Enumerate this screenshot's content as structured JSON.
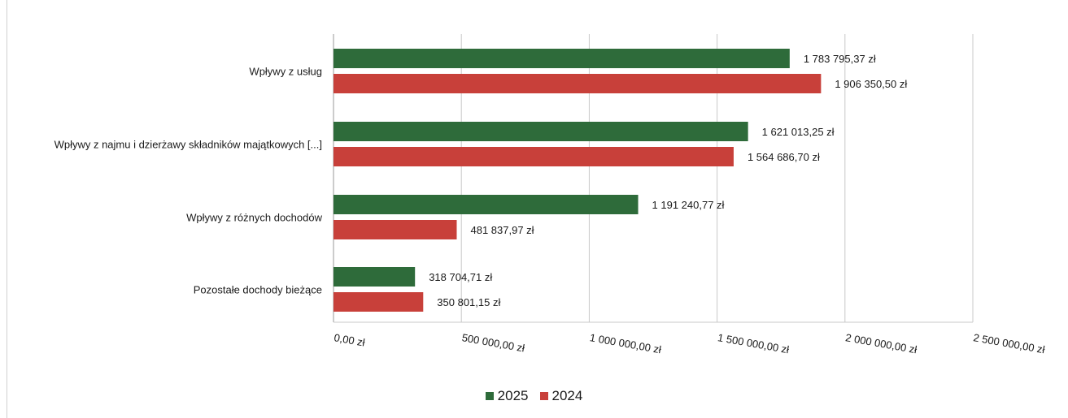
{
  "chart_data": {
    "type": "bar",
    "orientation": "horizontal",
    "title": "",
    "categories": [
      "Wpływy z usług",
      "Wpływy z najmu i dzierżawy składników majątkowych [...]",
      "Wpływy z różnych dochodów",
      "Pozostałe dochody bieżące"
    ],
    "series": [
      {
        "name": "2025",
        "color": "#2e6b3a",
        "values": [
          1783795.37,
          1621013.25,
          1191240.77,
          318704.71
        ],
        "value_labels": [
          "1 783 795,37 zł",
          "1 621 013,25 zł",
          "1 191 240,77 zł",
          "318 704,71 zł"
        ]
      },
      {
        "name": "2024",
        "color": "#c8403a",
        "values": [
          1906350.5,
          1564686.7,
          481837.97,
          350801.15
        ],
        "value_labels": [
          "1 906 350,50 zł",
          "1 564 686,70 zł",
          "481 837,97 zł",
          "350 801,15 zł"
        ]
      }
    ],
    "xlim": [
      0,
      2500000
    ],
    "x_ticks": [
      0,
      500000,
      1000000,
      1500000,
      2000000,
      2500000
    ],
    "x_tick_labels": [
      "0,00 zł",
      "500 000,00 zł",
      "1 000 000,00 zł",
      "1 500 000,00 zł",
      "2 000 000,00 zł",
      "2 500 000,00 zł"
    ],
    "xlabel": "",
    "ylabel": "",
    "grid": "vertical",
    "legend": "bottom-center"
  },
  "legend": {
    "items": [
      {
        "label": "2025",
        "color": "#2e6b3a"
      },
      {
        "label": "2024",
        "color": "#c8403a"
      }
    ]
  }
}
